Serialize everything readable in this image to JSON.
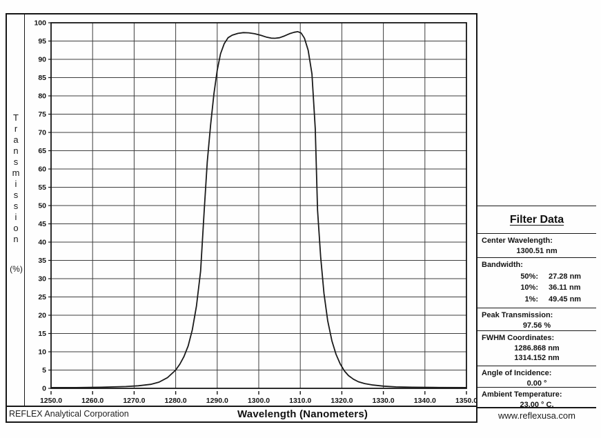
{
  "page": {
    "footer_company": "REFLEX Analytical Corporation",
    "footer_website": "www.reflexusa.com"
  },
  "chart_data": {
    "type": "line",
    "title": "",
    "xlabel": "Wavelength  (Nanometers)",
    "ylabel": "Transmission",
    "ylabel_unit": "(%)",
    "xlim": [
      1250.0,
      1350.0
    ],
    "ylim": [
      0,
      100
    ],
    "x_tick_step": 10,
    "y_tick_step": 5,
    "x_tick_decimals": 1,
    "grid": true,
    "legend": "none",
    "line_color": "#1a1a1a",
    "series": [
      {
        "name": "transmission-curve",
        "points": [
          [
            1250,
            0.2
          ],
          [
            1256,
            0.2
          ],
          [
            1262,
            0.3
          ],
          [
            1268,
            0.5
          ],
          [
            1271,
            0.7
          ],
          [
            1274,
            1.1
          ],
          [
            1276,
            1.7
          ],
          [
            1278,
            2.9
          ],
          [
            1280,
            5.0
          ],
          [
            1281,
            6.6
          ],
          [
            1282,
            8.7
          ],
          [
            1283,
            11.6
          ],
          [
            1284,
            16.0
          ],
          [
            1285,
            22.5
          ],
          [
            1286,
            32.0
          ],
          [
            1286.87,
            48.8
          ],
          [
            1287.6,
            62.0
          ],
          [
            1288.4,
            72.0
          ],
          [
            1289.2,
            80.5
          ],
          [
            1290,
            87.0
          ],
          [
            1290.8,
            91.5
          ],
          [
            1291.7,
            94.3
          ],
          [
            1292.6,
            95.9
          ],
          [
            1293.6,
            96.6
          ],
          [
            1295,
            97.1
          ],
          [
            1296.3,
            97.3
          ],
          [
            1297.6,
            97.25
          ],
          [
            1299,
            97.0
          ],
          [
            1300.4,
            96.6
          ],
          [
            1301.8,
            96.1
          ],
          [
            1303,
            95.8
          ],
          [
            1303.9,
            95.75
          ],
          [
            1305,
            95.9
          ],
          [
            1306.2,
            96.4
          ],
          [
            1307.4,
            97.0
          ],
          [
            1308.5,
            97.4
          ],
          [
            1309.4,
            97.56
          ],
          [
            1310.2,
            97.2
          ],
          [
            1311,
            95.8
          ],
          [
            1311.9,
            92.5
          ],
          [
            1312.8,
            86.0
          ],
          [
            1313.6,
            71.0
          ],
          [
            1314.15,
            48.8
          ],
          [
            1314.9,
            36.0
          ],
          [
            1315.7,
            26.0
          ],
          [
            1316.6,
            18.5
          ],
          [
            1317.6,
            13.0
          ],
          [
            1318.6,
            9.3
          ],
          [
            1319.6,
            6.7
          ],
          [
            1320.6,
            4.8
          ],
          [
            1321.6,
            3.5
          ],
          [
            1322.8,
            2.5
          ],
          [
            1324,
            1.8
          ],
          [
            1325.5,
            1.3
          ],
          [
            1327.5,
            0.9
          ],
          [
            1330,
            0.6
          ],
          [
            1333,
            0.4
          ],
          [
            1337,
            0.3
          ],
          [
            1342,
            0.25
          ],
          [
            1350,
            0.2
          ]
        ]
      }
    ]
  },
  "filter_data": {
    "title": "Filter Data",
    "center_wavelength_label": "Center Wavelength:",
    "center_wavelength_value": "1300.51 nm",
    "bandwidth_label": "Bandwidth:",
    "bandwidth_rows": [
      {
        "label": "50%:",
        "value": "27.28 nm"
      },
      {
        "label": "10%:",
        "value": "36.11 nm"
      },
      {
        "label": "1%:",
        "value": "49.45 nm"
      }
    ],
    "peak_transmission_label": "Peak Transmission:",
    "peak_transmission_value": "97.56 %",
    "fwhm_label": "FWHM Coordinates:",
    "fwhm_values": [
      "1286.868 nm",
      "1314.152 nm"
    ],
    "angle_label": "Angle of Incidence:",
    "angle_value": "0.00 °",
    "ambient_label": "Ambient Temperature:",
    "ambient_value": "23.00 ° C."
  }
}
